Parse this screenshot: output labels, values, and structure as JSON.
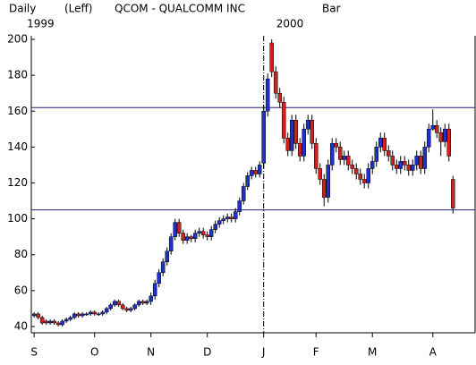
{
  "chart_data": {
    "type": "candlestick",
    "header": [
      "Daily",
      "(Leff)",
      "QCOM - QUALCOMM INC",
      "Bar"
    ],
    "year_labels": [
      {
        "value": 0,
        "label": "1999"
      },
      {
        "value": 57,
        "label": "2000"
      }
    ],
    "open": [
      46,
      47,
      45,
      43,
      42,
      43,
      42,
      41,
      43,
      44,
      45,
      47,
      46,
      47,
      47,
      48,
      47,
      47,
      48,
      50,
      52,
      54,
      52,
      50,
      49,
      50,
      52,
      54,
      53,
      54,
      57,
      64,
      70,
      76,
      82,
      90,
      98,
      92,
      88,
      90,
      89,
      92,
      93,
      91,
      90,
      94,
      97,
      99,
      100,
      101,
      100,
      104,
      110,
      118,
      124,
      127,
      125,
      131,
      160,
      198,
      182,
      170,
      165,
      145,
      138,
      155,
      142,
      135,
      150,
      155,
      142,
      128,
      122,
      112,
      130,
      142,
      140,
      133,
      135,
      130,
      128,
      125,
      122,
      120,
      128,
      132,
      140,
      145,
      138,
      135,
      130,
      128,
      132,
      130,
      127,
      130,
      135,
      128,
      140,
      150,
      152,
      148,
      143,
      150,
      122
    ],
    "high": [
      48,
      48,
      46,
      44,
      44,
      44,
      43,
      44,
      45,
      46,
      48,
      48,
      48,
      48,
      49,
      49,
      48,
      49,
      51,
      53,
      55,
      55,
      53,
      51,
      51,
      53,
      55,
      55,
      55,
      59,
      66,
      72,
      78,
      84,
      92,
      100,
      100,
      94,
      92,
      91,
      94,
      95,
      95,
      93,
      96,
      99,
      101,
      102,
      103,
      103,
      106,
      112,
      120,
      126,
      129,
      129,
      132,
      163,
      181,
      200,
      185,
      173,
      168,
      148,
      158,
      158,
      145,
      153,
      158,
      158,
      145,
      131,
      125,
      133,
      145,
      145,
      143,
      138,
      138,
      133,
      131,
      128,
      125,
      131,
      135,
      143,
      148,
      148,
      141,
      138,
      133,
      135,
      135,
      133,
      133,
      138,
      138,
      143,
      153,
      161,
      155,
      151,
      153,
      153,
      124
    ],
    "low": [
      45,
      44,
      41,
      41,
      41,
      41,
      40,
      40,
      42,
      43,
      44,
      45,
      45,
      46,
      46,
      46,
      46,
      46,
      47,
      49,
      51,
      51,
      49,
      48,
      48,
      49,
      51,
      52,
      52,
      52,
      55,
      62,
      68,
      74,
      80,
      88,
      90,
      86,
      86,
      87,
      87,
      90,
      89,
      88,
      88,
      92,
      95,
      97,
      98,
      98,
      98,
      102,
      108,
      116,
      122,
      123,
      123,
      128,
      157,
      179,
      167,
      162,
      142,
      135,
      135,
      139,
      132,
      132,
      147,
      139,
      125,
      119,
      107,
      109,
      127,
      137,
      130,
      130,
      127,
      125,
      122,
      119,
      117,
      117,
      125,
      129,
      137,
      135,
      132,
      127,
      125,
      125,
      127,
      124,
      124,
      127,
      125,
      125,
      137,
      149,
      145,
      135,
      140,
      132,
      103
    ],
    "close": [
      47,
      45,
      42,
      42,
      43,
      42,
      41,
      43,
      44,
      45,
      47,
      46,
      47,
      47,
      48,
      47,
      47,
      48,
      50,
      52,
      54,
      52,
      50,
      49,
      50,
      52,
      54,
      53,
      54,
      57,
      64,
      70,
      76,
      82,
      90,
      98,
      92,
      88,
      90,
      89,
      92,
      93,
      91,
      90,
      94,
      97,
      99,
      100,
      101,
      100,
      104,
      110,
      118,
      124,
      127,
      125,
      130,
      160,
      178,
      182,
      170,
      165,
      145,
      138,
      155,
      142,
      135,
      150,
      155,
      142,
      128,
      122,
      112,
      130,
      142,
      140,
      133,
      135,
      130,
      128,
      125,
      122,
      120,
      128,
      132,
      140,
      145,
      138,
      135,
      130,
      128,
      132,
      130,
      127,
      130,
      135,
      128,
      140,
      150,
      152,
      148,
      143,
      150,
      135,
      106
    ],
    "up_color": "#2030c8",
    "down_color": "#d02020",
    "xlim": [
      -0.7,
      109.5
    ],
    "xticks": [
      {
        "value": 0,
        "label": "S"
      },
      {
        "value": 15,
        "label": "O"
      },
      {
        "value": 29,
        "label": "N"
      },
      {
        "value": 43,
        "label": "D"
      },
      {
        "value": 57,
        "label": "J"
      },
      {
        "value": 70,
        "label": "F"
      },
      {
        "value": 84,
        "label": "M"
      },
      {
        "value": 99,
        "label": "A"
      }
    ],
    "ylim": [
      36.5,
      202
    ],
    "yticks": [
      40,
      60,
      80,
      100,
      120,
      140,
      160,
      180,
      200
    ],
    "reference_lines": [
      162,
      105
    ],
    "reference_color": "#202080",
    "divider_at": 57
  }
}
